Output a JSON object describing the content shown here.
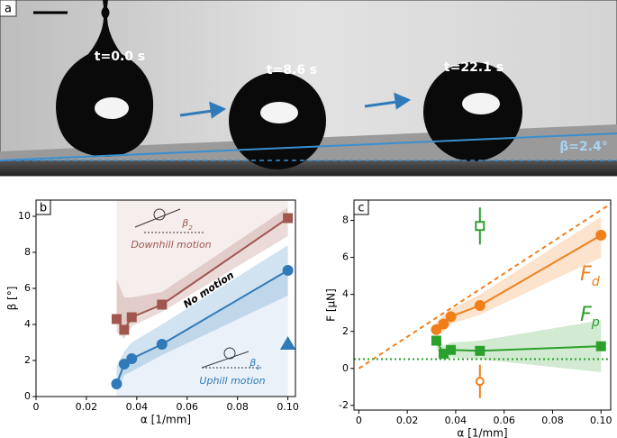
{
  "photo_panel": {
    "label": "a",
    "times": [
      "t=0.0 s",
      "t=8.6 s",
      "t=22.1 s"
    ],
    "angle": "β=2.4°"
  },
  "chart_data": [
    {
      "type": "line",
      "panel": "b",
      "xlabel": "α [1/mm]",
      "ylabel": "β [°]",
      "xlim": [
        0,
        0.103
      ],
      "xticks": [
        0,
        0.02,
        0.04,
        0.06,
        0.08,
        {
          "value": 0.1,
          "label": "0.10"
        }
      ],
      "ylim": [
        0,
        10.9
      ],
      "yticks": [
        0,
        2,
        4,
        6,
        8,
        10
      ],
      "annotations": [
        "Downhill motion",
        "No motion",
        "Uphill motion",
        {
          "main": "β",
          "sub": "2"
        },
        {
          "main": "β",
          "sub": "1"
        }
      ],
      "series": [
        {
          "color": "#a0574f",
          "marker": "square",
          "region": "above",
          "x": [
            0.032,
            0.035,
            0.038,
            0.05,
            0.1
          ],
          "values": [
            4.3,
            3.7,
            4.4,
            5.1,
            9.9
          ],
          "band_lower": [
            3.6,
            3.2,
            3.9,
            4.7,
            8.9
          ],
          "band_upper": [
            6.5,
            5.5,
            5.5,
            5.8,
            10.5
          ]
        },
        {
          "color": "#2f7ab9",
          "marker": "circle",
          "region": "below",
          "x": [
            0.032,
            0.035,
            0.038,
            0.05,
            0.1
          ],
          "values": [
            0.7,
            1.8,
            2.1,
            2.9,
            7.0
          ],
          "band_lower": [
            0.3,
            1.2,
            1.4,
            2.3,
            5.6
          ],
          "band_upper": [
            1.7,
            2.5,
            3.0,
            4.0,
            8.4
          ]
        },
        {
          "color": "#2f7ab9",
          "marker": "triangle",
          "nolines": true,
          "x": [
            0.1
          ],
          "values": [
            2.9
          ]
        }
      ]
    },
    {
      "type": "line",
      "panel": "c",
      "xlabel": "α [1/mm]",
      "ylabel": "F [μN]",
      "xlim": [
        -0.002,
        0.104
      ],
      "xticks": [
        0,
        0.02,
        0.04,
        0.06,
        0.08,
        {
          "value": 0.1,
          "label": "0.10"
        }
      ],
      "ylim": [
        -2.25,
        9.1
      ],
      "yticks": [
        -2,
        0,
        2,
        4,
        6,
        8
      ],
      "annotations": [
        {
          "main": "F",
          "sub": "d"
        },
        {
          "main": "F",
          "sub": "p"
        }
      ],
      "series": [
        {
          "color": "#f07f1a",
          "dash": "5,4",
          "x": [
            0,
            0.104
          ],
          "values": [
            0,
            8.9
          ]
        },
        {
          "color": "#2ca02c",
          "dash": "2,3",
          "x": [
            -0.002,
            0.104
          ],
          "values": [
            0.5,
            0.5
          ]
        },
        {
          "color": "#f07f1a",
          "marker": "circle",
          "x": [
            0.032,
            0.035,
            0.038,
            0.05,
            0.1
          ],
          "values": [
            2.1,
            2.4,
            2.8,
            3.4,
            7.2
          ],
          "band_lower": [
            1.8,
            2.0,
            2.4,
            2.9,
            6.0
          ],
          "band_upper": [
            2.5,
            2.9,
            3.2,
            4.0,
            8.2
          ]
        },
        {
          "color": "#2ca02c",
          "marker": "square",
          "x": [
            0.032,
            0.035,
            0.038,
            0.05,
            0.1
          ],
          "values": [
            1.5,
            0.8,
            1.0,
            0.95,
            1.2
          ],
          "band_lower": [
            1.1,
            0.4,
            0.6,
            0.5,
            -0.2
          ],
          "band_upper": [
            1.8,
            1.2,
            1.4,
            1.5,
            2.6
          ]
        },
        {
          "color": "#2ca02c",
          "marker": "square",
          "hollow": true,
          "nolines": true,
          "x": [
            0.05
          ],
          "values": [
            7.7
          ],
          "errors": [
            1.0
          ]
        },
        {
          "color": "#f07f1a",
          "marker": "circle",
          "hollow": true,
          "nolines": true,
          "x": [
            0.05
          ],
          "values": [
            -0.7
          ],
          "errors": [
            0.9
          ]
        }
      ]
    }
  ]
}
